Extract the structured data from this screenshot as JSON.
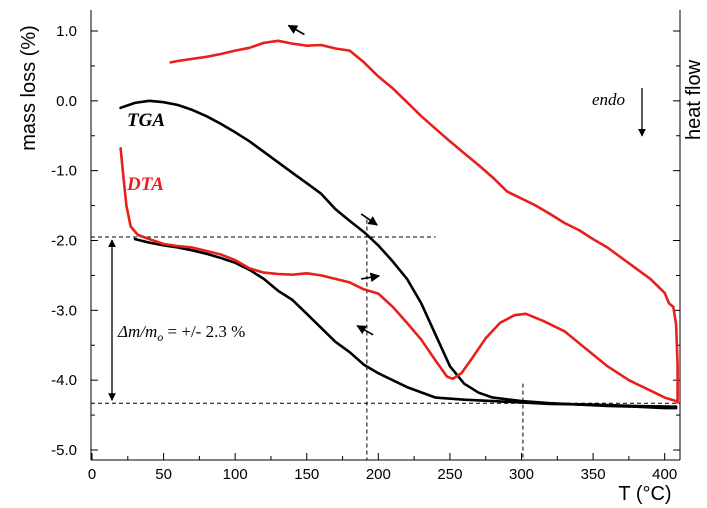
{
  "chart_data": {
    "type": "line",
    "title": "",
    "xlabel": "T (°C)",
    "ylabel": "mass loss (%)",
    "y2label": "heat flow",
    "xlim": [
      0,
      410
    ],
    "ylim": [
      -5.0,
      1.0
    ],
    "x_ticks": [
      "0",
      "50",
      "100",
      "150",
      "200",
      "250",
      "300",
      "350",
      "400"
    ],
    "y_ticks": [
      "1.0",
      "0.0",
      "-1.0",
      "-2.0",
      "-3.0",
      "-4.0",
      "-5.0"
    ],
    "grid": false,
    "series": [
      {
        "name": "TGA",
        "color": "#000000",
        "label_color": "#000000",
        "segments": [
          {
            "direction": "heating",
            "points": [
              [
                20,
                -0.1
              ],
              [
                30,
                -0.03
              ],
              [
                40,
                0.0
              ],
              [
                50,
                -0.02
              ],
              [
                60,
                -0.06
              ],
              [
                70,
                -0.13
              ],
              [
                80,
                -0.22
              ],
              [
                90,
                -0.33
              ],
              [
                100,
                -0.45
              ],
              [
                110,
                -0.58
              ],
              [
                120,
                -0.73
              ],
              [
                130,
                -0.88
              ],
              [
                140,
                -1.03
              ],
              [
                150,
                -1.18
              ],
              [
                160,
                -1.33
              ],
              [
                170,
                -1.55
              ],
              [
                180,
                -1.72
              ],
              [
                190,
                -1.88
              ],
              [
                200,
                -2.07
              ],
              [
                210,
                -2.3
              ],
              [
                220,
                -2.55
              ],
              [
                230,
                -2.9
              ],
              [
                240,
                -3.35
              ],
              [
                250,
                -3.8
              ],
              [
                260,
                -4.05
              ],
              [
                270,
                -4.18
              ],
              [
                280,
                -4.25
              ],
              [
                300,
                -4.3
              ],
              [
                320,
                -4.33
              ],
              [
                340,
                -4.35
              ],
              [
                360,
                -4.37
              ],
              [
                380,
                -4.38
              ],
              [
                400,
                -4.4
              ],
              [
                408,
                -4.4
              ]
            ]
          },
          {
            "direction": "cooling",
            "points": [
              [
                408,
                -4.38
              ],
              [
                380,
                -4.37
              ],
              [
                350,
                -4.35
              ],
              [
                320,
                -4.34
              ],
              [
                300,
                -4.32
              ],
              [
                280,
                -4.3
              ],
              [
                260,
                -4.28
              ],
              [
                240,
                -4.25
              ],
              [
                220,
                -4.1
              ],
              [
                200,
                -3.9
              ],
              [
                190,
                -3.78
              ],
              [
                180,
                -3.6
              ],
              [
                170,
                -3.45
              ],
              [
                160,
                -3.25
              ],
              [
                150,
                -3.05
              ],
              [
                140,
                -2.85
              ],
              [
                130,
                -2.72
              ],
              [
                120,
                -2.55
              ],
              [
                110,
                -2.42
              ],
              [
                100,
                -2.32
              ],
              [
                90,
                -2.25
              ],
              [
                80,
                -2.19
              ],
              [
                70,
                -2.14
              ],
              [
                60,
                -2.1
              ],
              [
                50,
                -2.07
              ],
              [
                40,
                -2.03
              ],
              [
                30,
                -1.98
              ]
            ]
          }
        ]
      },
      {
        "name": "DTA",
        "color": "#e8201c",
        "label_color": "#e8201c",
        "segments": [
          {
            "direction": "heating",
            "points": [
              [
                20,
                -0.68
              ],
              [
                22,
                -1.1
              ],
              [
                24,
                -1.5
              ],
              [
                27,
                -1.8
              ],
              [
                32,
                -1.92
              ],
              [
                40,
                -1.98
              ],
              [
                50,
                -2.05
              ],
              [
                60,
                -2.08
              ],
              [
                70,
                -2.1
              ],
              [
                80,
                -2.15
              ],
              [
                90,
                -2.2
              ],
              [
                100,
                -2.28
              ],
              [
                110,
                -2.4
              ],
              [
                120,
                -2.46
              ],
              [
                130,
                -2.48
              ],
              [
                140,
                -2.49
              ],
              [
                150,
                -2.47
              ],
              [
                160,
                -2.5
              ],
              [
                170,
                -2.55
              ],
              [
                180,
                -2.6
              ],
              [
                190,
                -2.7
              ],
              [
                200,
                -2.76
              ],
              [
                210,
                -2.95
              ],
              [
                220,
                -3.18
              ],
              [
                230,
                -3.42
              ],
              [
                240,
                -3.72
              ],
              [
                248,
                -3.95
              ],
              [
                252,
                -3.98
              ],
              [
                258,
                -3.9
              ],
              [
                265,
                -3.7
              ],
              [
                275,
                -3.4
              ],
              [
                285,
                -3.18
              ],
              [
                295,
                -3.07
              ],
              [
                303,
                -3.05
              ],
              [
                315,
                -3.15
              ],
              [
                330,
                -3.3
              ],
              [
                345,
                -3.55
              ],
              [
                360,
                -3.8
              ],
              [
                375,
                -4.0
              ],
              [
                390,
                -4.15
              ],
              [
                400,
                -4.25
              ],
              [
                405,
                -4.28
              ],
              [
                408,
                -4.3
              ]
            ]
          },
          {
            "direction": "cooling",
            "points": [
              [
                409,
                -4.32
              ],
              [
                409,
                -3.8
              ],
              [
                408,
                -3.2
              ],
              [
                406,
                -2.95
              ],
              [
                403,
                -2.9
              ],
              [
                400,
                -2.75
              ],
              [
                390,
                -2.55
              ],
              [
                380,
                -2.4
              ],
              [
                370,
                -2.25
              ],
              [
                360,
                -2.1
              ],
              [
                350,
                -1.98
              ],
              [
                340,
                -1.85
              ],
              [
                330,
                -1.75
              ],
              [
                320,
                -1.62
              ],
              [
                310,
                -1.5
              ],
              [
                300,
                -1.4
              ],
              [
                290,
                -1.3
              ],
              [
                280,
                -1.1
              ],
              [
                270,
                -0.92
              ],
              [
                260,
                -0.75
              ],
              [
                250,
                -0.58
              ],
              [
                240,
                -0.4
              ],
              [
                230,
                -0.22
              ],
              [
                220,
                -0.02
              ],
              [
                210,
                0.18
              ],
              [
                200,
                0.35
              ],
              [
                190,
                0.55
              ],
              [
                180,
                0.72
              ],
              [
                170,
                0.75
              ],
              [
                160,
                0.8
              ],
              [
                150,
                0.79
              ],
              [
                140,
                0.82
              ],
              [
                130,
                0.86
              ],
              [
                120,
                0.83
              ],
              [
                110,
                0.76
              ],
              [
                100,
                0.72
              ],
              [
                90,
                0.67
              ],
              [
                80,
                0.63
              ],
              [
                70,
                0.6
              ],
              [
                60,
                0.57
              ],
              [
                55,
                0.55
              ]
            ]
          }
        ]
      }
    ],
    "annotations": {
      "endo": "endo",
      "delta_m": "Δm/m",
      "delta_m_sub": "o",
      "delta_m_value": " = +/- 2.3 %",
      "delta_span": [
        -1.95,
        -4.33
      ],
      "reference_temperatures": [
        192,
        301
      ],
      "arrows": [
        {
          "at": [
            140,
            0.95
          ],
          "dir": "left-up",
          "target": "DTA cooling"
        },
        {
          "at": [
            188,
            -1.62
          ],
          "dir": "right-down",
          "target": "TGA heating"
        },
        {
          "at": [
            188,
            -2.55
          ],
          "dir": "right",
          "target": "DTA heating"
        },
        {
          "at": [
            188,
            -3.35
          ],
          "dir": "left-up",
          "target": "TGA cooling"
        }
      ]
    }
  }
}
